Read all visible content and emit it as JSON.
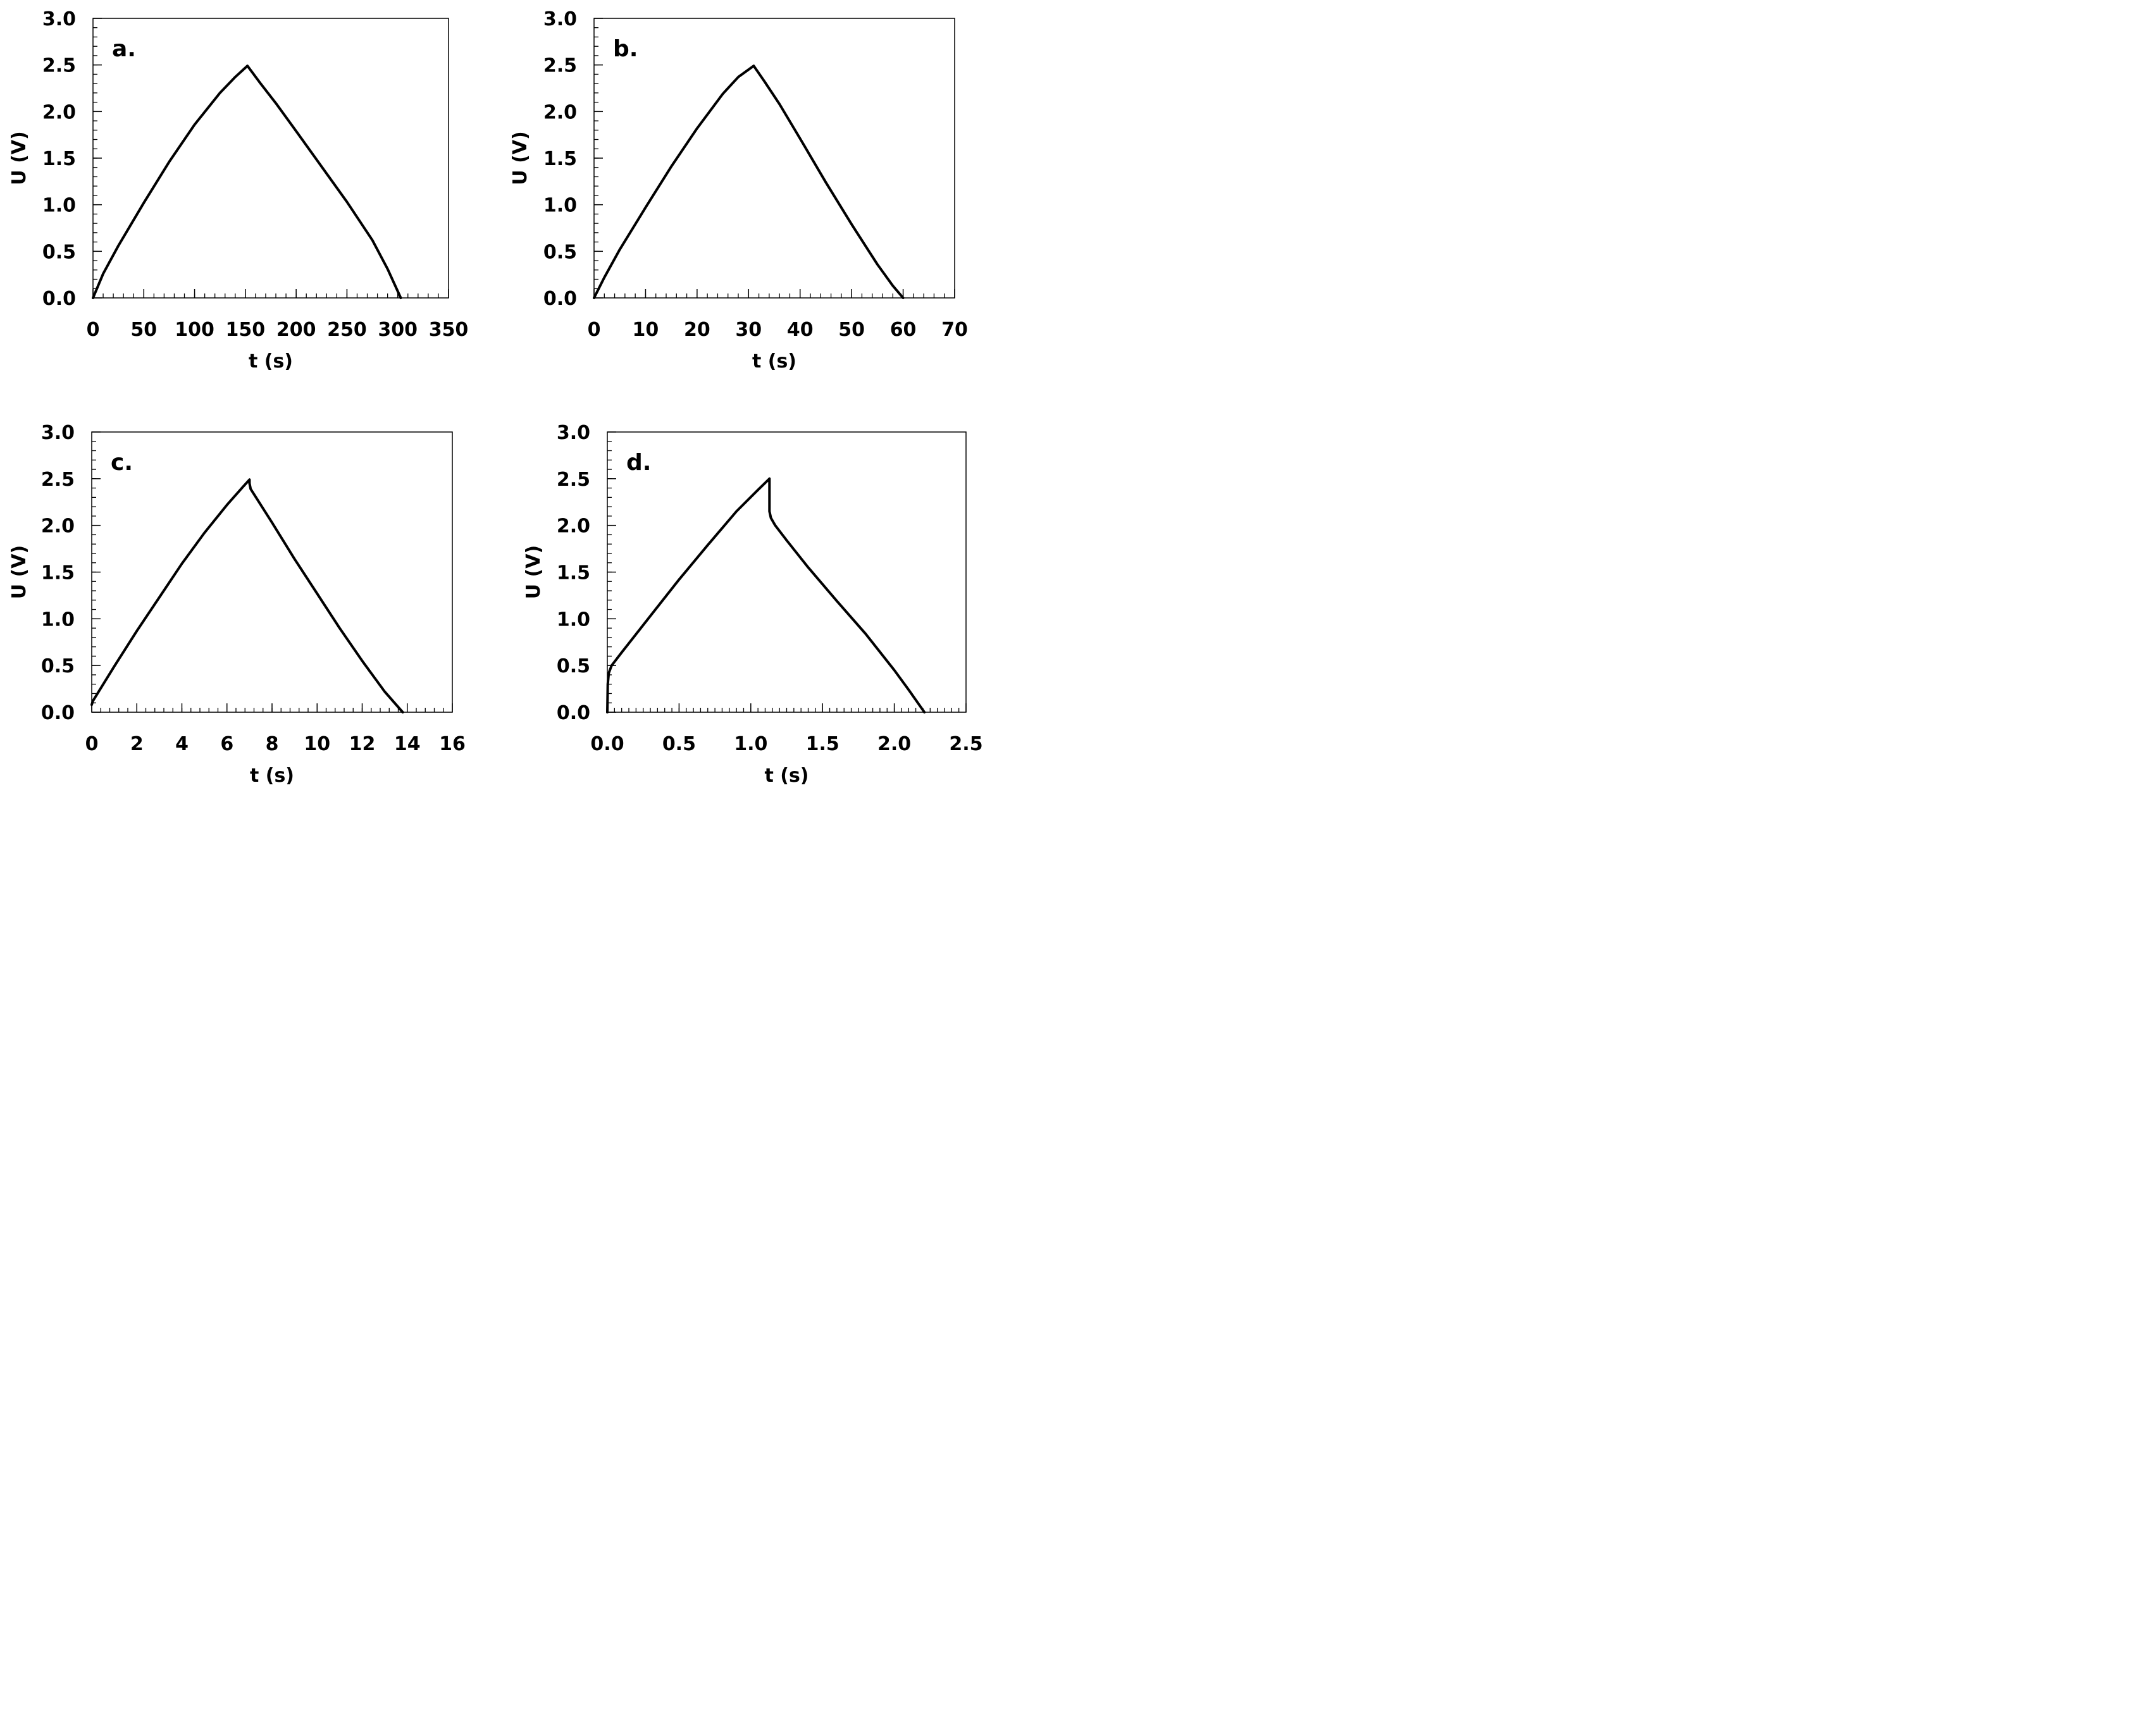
{
  "chart_data": [
    {
      "type": "line",
      "panel_label": "a.",
      "xlabel": "t (s)",
      "ylabel": "U (V)",
      "xlim": [
        0,
        350
      ],
      "ylim": [
        0,
        3.0
      ],
      "xticks": [
        "0",
        "50",
        "100",
        "150",
        "200",
        "250",
        "300",
        "350"
      ],
      "yticks": [
        "0.0",
        "0.5",
        "1.0",
        "1.5",
        "2.0",
        "2.5",
        "3.0"
      ],
      "x_minor_step": 10,
      "y_minor_step": 0.1,
      "grid": false,
      "line_color": "#000000",
      "series": [
        {
          "x": [
            0,
            10,
            25,
            50,
            75,
            100,
            125,
            140,
            152,
            165,
            180,
            200,
            225,
            250,
            275,
            290,
            303
          ],
          "y": [
            0.0,
            0.26,
            0.56,
            1.02,
            1.46,
            1.86,
            2.2,
            2.37,
            2.49,
            2.3,
            2.09,
            1.79,
            1.41,
            1.03,
            0.62,
            0.31,
            0.0
          ]
        }
      ]
    },
    {
      "type": "line",
      "panel_label": "b.",
      "xlabel": "t (s)",
      "ylabel": "U (V)",
      "xlim": [
        0,
        70
      ],
      "ylim": [
        0,
        3.0
      ],
      "xticks": [
        "0",
        "10",
        "20",
        "30",
        "40",
        "50",
        "60",
        "70"
      ],
      "yticks": [
        "0.0",
        "0.5",
        "1.0",
        "1.5",
        "2.0",
        "2.5",
        "3.0"
      ],
      "x_minor_step": 2,
      "y_minor_step": 0.1,
      "grid": false,
      "line_color": "#000000",
      "series": [
        {
          "x": [
            0,
            2,
            5,
            10,
            15,
            20,
            25,
            28,
            31,
            33,
            36,
            40,
            45,
            50,
            55,
            58,
            60
          ],
          "y": [
            0.0,
            0.22,
            0.52,
            0.97,
            1.41,
            1.82,
            2.19,
            2.37,
            2.49,
            2.33,
            2.08,
            1.71,
            1.24,
            0.79,
            0.36,
            0.13,
            0.0
          ]
        }
      ]
    },
    {
      "type": "line",
      "panel_label": "c.",
      "xlabel": "t (s)",
      "ylabel": "U (V)",
      "xlim": [
        0,
        16
      ],
      "ylim": [
        0,
        3.0
      ],
      "xticks": [
        "0",
        "2",
        "4",
        "6",
        "8",
        "10",
        "12",
        "14",
        "16"
      ],
      "yticks": [
        "0.0",
        "0.5",
        "1.0",
        "1.5",
        "2.0",
        "2.5",
        "3.0"
      ],
      "x_minor_step": 0.4,
      "y_minor_step": 0.1,
      "grid": false,
      "line_color": "#000000",
      "series": [
        {
          "x": [
            0,
            0.05,
            1,
            2,
            3,
            4,
            5,
            6,
            6.7,
            7.0,
            7.0,
            7.05,
            8,
            9,
            10,
            11,
            12,
            13,
            13.8
          ],
          "y": [
            0.08,
            0.12,
            0.49,
            0.87,
            1.23,
            1.59,
            1.92,
            2.22,
            2.41,
            2.49,
            2.45,
            2.39,
            2.03,
            1.64,
            1.27,
            0.9,
            0.55,
            0.22,
            0.0
          ]
        }
      ]
    },
    {
      "type": "line",
      "panel_label": "d.",
      "xlabel": "t (s)",
      "ylabel": "U (V)",
      "xlim": [
        0,
        2.5
      ],
      "ylim": [
        0,
        3.0
      ],
      "xticks": [
        "0.0",
        "0.5",
        "1.0",
        "1.5",
        "2.0",
        "2.5"
      ],
      "yticks": [
        "0.0",
        "0.5",
        "1.0",
        "1.5",
        "2.0",
        "2.5",
        "3.0"
      ],
      "x_minor_step": 0.05,
      "y_minor_step": 0.1,
      "grid": false,
      "line_color": "#000000",
      "series": [
        {
          "x": [
            0,
            0.003,
            0.01,
            0.03,
            0.1,
            0.3,
            0.5,
            0.7,
            0.9,
            1.05,
            1.13,
            1.13,
            1.14,
            1.17,
            1.25,
            1.4,
            1.6,
            1.8,
            2.0,
            2.1,
            2.21
          ],
          "y": [
            0.0,
            0.3,
            0.42,
            0.5,
            0.64,
            1.03,
            1.42,
            1.79,
            2.15,
            2.38,
            2.5,
            2.15,
            2.08,
            2.0,
            1.84,
            1.55,
            1.19,
            0.84,
            0.45,
            0.24,
            0.0
          ]
        }
      ]
    }
  ]
}
